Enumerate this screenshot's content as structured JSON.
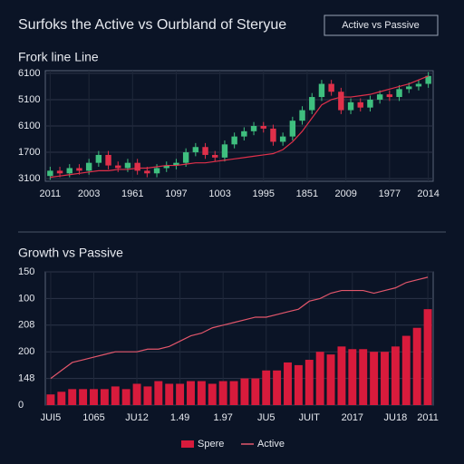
{
  "header": {
    "title": "Surfoks the Active vs Ourbland of Steryue",
    "button": "Active vs Passive"
  },
  "chart_data": [
    {
      "type": "candlestick",
      "title": "Frork line Line",
      "open": [
        0.1,
        0.3,
        0.2,
        0.4,
        0.3,
        0.6,
        0.9,
        0.5,
        0.4,
        0.6,
        0.3,
        0.2,
        0.4,
        0.5,
        0.6,
        1.0,
        1.2,
        0.9,
        0.8,
        1.3,
        1.6,
        1.8,
        2.0,
        1.9,
        1.4,
        1.6,
        2.2,
        2.6,
        3.1,
        3.6,
        3.3,
        2.6,
        2.9,
        2.7,
        3.0,
        3.2,
        3.1,
        3.4,
        3.5,
        3.6
      ],
      "close": [
        0.3,
        0.2,
        0.4,
        0.3,
        0.6,
        0.9,
        0.5,
        0.4,
        0.6,
        0.3,
        0.2,
        0.4,
        0.5,
        0.6,
        1.0,
        1.2,
        0.9,
        0.8,
        1.3,
        1.6,
        1.8,
        2.0,
        1.9,
        1.4,
        1.6,
        2.2,
        2.6,
        3.1,
        3.6,
        3.3,
        2.6,
        2.9,
        2.7,
        3.0,
        3.2,
        3.1,
        3.4,
        3.5,
        3.6,
        3.9
      ],
      "high": [
        0.45,
        0.45,
        0.55,
        0.55,
        0.75,
        1.05,
        1.05,
        0.65,
        0.75,
        0.75,
        0.45,
        0.55,
        0.65,
        0.75,
        1.15,
        1.35,
        1.35,
        1.05,
        1.45,
        1.75,
        1.95,
        2.15,
        2.15,
        2.05,
        1.75,
        2.35,
        2.75,
        3.25,
        3.75,
        3.75,
        3.45,
        3.05,
        3.05,
        3.15,
        3.35,
        3.35,
        3.55,
        3.65,
        3.75,
        4.05
      ],
      "low": [
        -0.05,
        0.05,
        0.05,
        0.15,
        0.15,
        0.45,
        0.35,
        0.25,
        0.25,
        0.15,
        0.05,
        0.05,
        0.25,
        0.35,
        0.45,
        0.85,
        0.75,
        0.65,
        0.65,
        1.15,
        1.45,
        1.65,
        1.75,
        1.25,
        1.25,
        1.45,
        2.05,
        2.45,
        2.95,
        3.15,
        2.45,
        2.45,
        2.55,
        2.55,
        2.85,
        2.95,
        2.95,
        3.25,
        3.35,
        3.45
      ],
      "up_color": "#3fbf7f",
      "down_color": "#e0304a",
      "line": {
        "color": "#e0304a",
        "values": [
          0.05,
          0.1,
          0.15,
          0.2,
          0.25,
          0.3,
          0.3,
          0.35,
          0.35,
          0.4,
          0.4,
          0.45,
          0.5,
          0.5,
          0.55,
          0.6,
          0.6,
          0.65,
          0.7,
          0.75,
          0.8,
          0.85,
          0.9,
          0.95,
          1.1,
          1.4,
          1.8,
          2.3,
          2.8,
          3.0,
          3.1,
          3.1,
          3.15,
          3.2,
          3.3,
          3.4,
          3.5,
          3.6,
          3.75,
          3.9
        ]
      },
      "xlim": [
        -0.5,
        39.5
      ],
      "xticks": [
        {
          "value": 0,
          "label": "2011"
        },
        {
          "value": 4,
          "label": "2003"
        },
        {
          "value": 8.5,
          "label": "1961"
        },
        {
          "value": 13,
          "label": "1097"
        },
        {
          "value": 17.5,
          "label": "1003"
        },
        {
          "value": 22,
          "label": "1995"
        },
        {
          "value": 26.5,
          "label": "1851"
        },
        {
          "value": 30.5,
          "label": "2009"
        },
        {
          "value": 35,
          "label": "1977"
        },
        {
          "value": 39,
          "label": "2014"
        }
      ],
      "ylim": [
        -0.1,
        4.1
      ],
      "yticks": [
        {
          "value": 0,
          "label": "3100"
        },
        {
          "value": 1,
          "label": "1700"
        },
        {
          "value": 2,
          "label": "6100"
        },
        {
          "value": 3,
          "label": "5100"
        },
        {
          "value": 4,
          "label": "6100"
        }
      ],
      "grid": true
    },
    {
      "type": "bar",
      "title": "Growth vs Passive",
      "series": [
        {
          "name": "Spere",
          "color": "#d81b3c",
          "values": [
            0.4,
            0.5,
            0.6,
            0.6,
            0.6,
            0.6,
            0.7,
            0.6,
            0.8,
            0.7,
            0.9,
            0.8,
            0.8,
            0.9,
            0.9,
            0.8,
            0.9,
            0.9,
            1.0,
            1.0,
            1.3,
            1.3,
            1.6,
            1.5,
            1.7,
            2.0,
            1.9,
            2.2,
            2.1,
            2.1,
            2.0,
            2.0,
            2.2,
            2.6,
            2.9,
            3.6
          ]
        },
        {
          "name": "Active",
          "color": "#e2566b",
          "type": "line",
          "values": [
            1.0,
            1.3,
            1.6,
            1.7,
            1.8,
            1.9,
            2.0,
            2.0,
            2.0,
            2.1,
            2.1,
            2.2,
            2.4,
            2.6,
            2.7,
            2.9,
            3.0,
            3.1,
            3.2,
            3.3,
            3.3,
            3.4,
            3.5,
            3.6,
            3.9,
            4.0,
            4.2,
            4.3,
            4.3,
            4.3,
            4.2,
            4.3,
            4.4,
            4.6,
            4.7,
            4.8
          ]
        }
      ],
      "xlim": [
        -0.5,
        35.5
      ],
      "xticks": [
        {
          "value": 0,
          "label": "JUI5"
        },
        {
          "value": 4,
          "label": "1065"
        },
        {
          "value": 8,
          "label": "JU12"
        },
        {
          "value": 12,
          "label": "1.49"
        },
        {
          "value": 16,
          "label": "1.97"
        },
        {
          "value": 20,
          "label": "JU5"
        },
        {
          "value": 24,
          "label": "JUIT"
        },
        {
          "value": 28,
          "label": "2017"
        },
        {
          "value": 32,
          "label": "JU18"
        },
        {
          "value": 35,
          "label": "2011"
        }
      ],
      "ylim": [
        0,
        5
      ],
      "yticks": [
        0,
        {
          "value": 1,
          "label": "148"
        },
        {
          "value": 2,
          "label": "200"
        },
        {
          "value": 3,
          "label": "208"
        },
        {
          "value": 4,
          "label": "100"
        },
        {
          "value": 5,
          "label": "150"
        }
      ],
      "grid": true
    }
  ]
}
